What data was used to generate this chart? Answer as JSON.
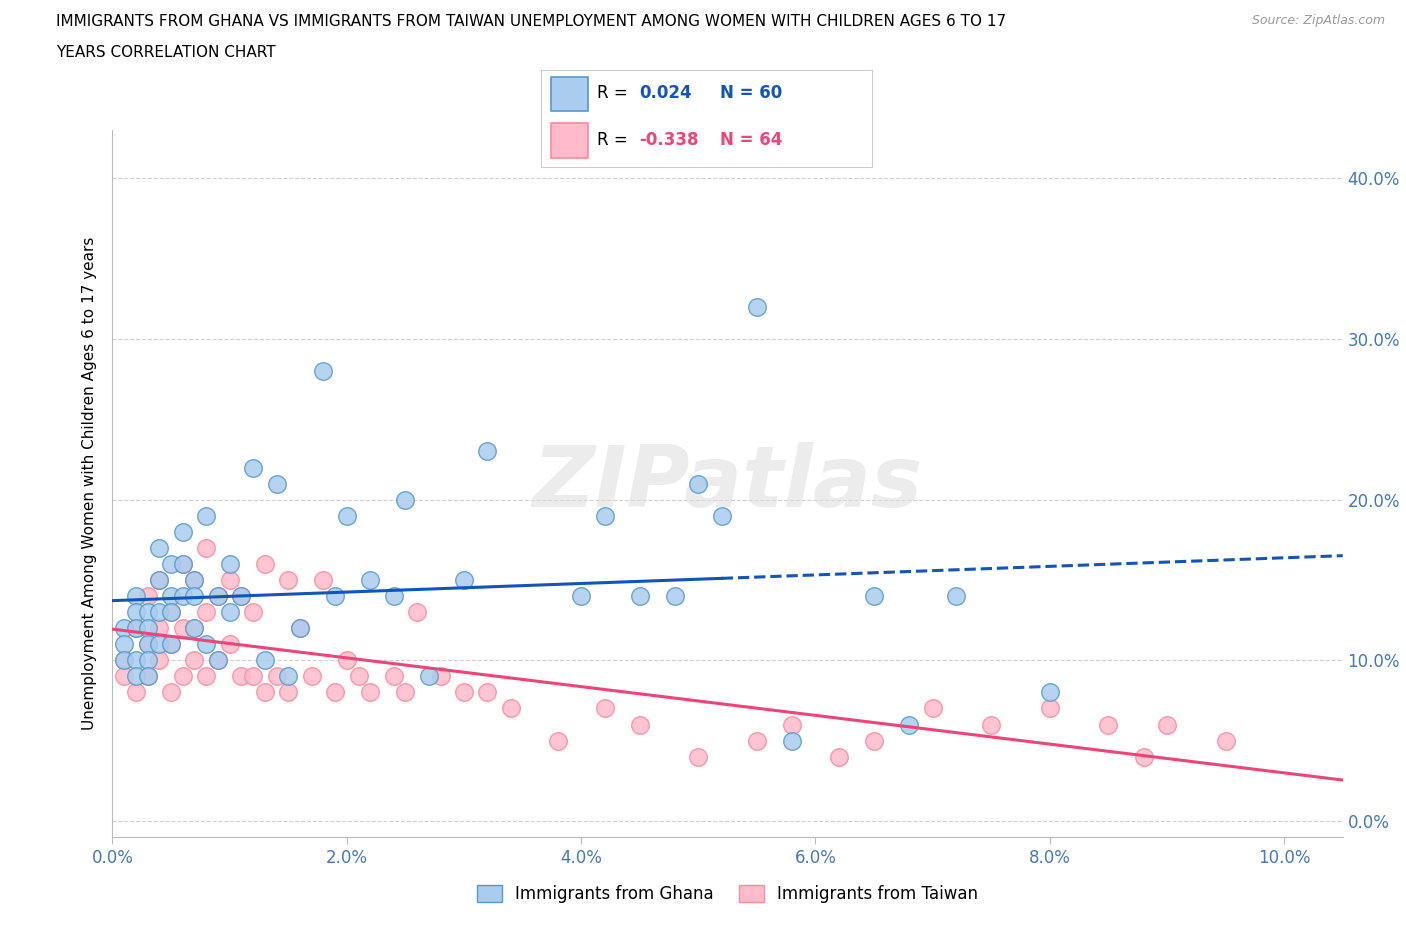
{
  "title_line1": "IMMIGRANTS FROM GHANA VS IMMIGRANTS FROM TAIWAN UNEMPLOYMENT AMONG WOMEN WITH CHILDREN AGES 6 TO 17",
  "title_line2": "YEARS CORRELATION CHART",
  "source": "Source: ZipAtlas.com",
  "ylabel": "Unemployment Among Women with Children Ages 6 to 17 years",
  "xlim": [
    0.0,
    0.105
  ],
  "ylim": [
    -0.01,
    0.43
  ],
  "ghana_R": 0.024,
  "ghana_N": 60,
  "taiwan_R": -0.338,
  "taiwan_N": 64,
  "ghana_color": "#AACCEE",
  "ghana_edge_color": "#5599CC",
  "taiwan_color": "#FFBBCC",
  "taiwan_edge_color": "#FF8899",
  "ghana_line_color": "#1155BB",
  "taiwan_line_color": "#EE4477",
  "x_ticks": [
    0.0,
    0.02,
    0.04,
    0.06,
    0.08,
    0.1
  ],
  "x_labels": [
    "0.0%",
    "2.0%",
    "4.0%",
    "6.0%",
    "8.0%",
    "10.0%"
  ],
  "y_ticks": [
    0.0,
    0.1,
    0.2,
    0.3,
    0.4
  ],
  "y_labels": [
    "0.0%",
    "10.0%",
    "20.0%",
    "30.0%",
    "40.0%"
  ],
  "ghana_x": [
    0.001,
    0.001,
    0.001,
    0.002,
    0.002,
    0.002,
    0.002,
    0.002,
    0.003,
    0.003,
    0.003,
    0.003,
    0.003,
    0.004,
    0.004,
    0.004,
    0.004,
    0.005,
    0.005,
    0.005,
    0.005,
    0.006,
    0.006,
    0.006,
    0.007,
    0.007,
    0.007,
    0.008,
    0.008,
    0.009,
    0.009,
    0.01,
    0.01,
    0.011,
    0.012,
    0.013,
    0.014,
    0.015,
    0.016,
    0.018,
    0.019,
    0.02,
    0.022,
    0.024,
    0.025,
    0.027,
    0.03,
    0.032,
    0.04,
    0.042,
    0.045,
    0.048,
    0.05,
    0.052,
    0.055,
    0.058,
    0.065,
    0.068,
    0.072,
    0.08
  ],
  "ghana_y": [
    0.12,
    0.11,
    0.1,
    0.14,
    0.13,
    0.12,
    0.1,
    0.09,
    0.13,
    0.12,
    0.11,
    0.1,
    0.09,
    0.17,
    0.15,
    0.13,
    0.11,
    0.16,
    0.14,
    0.13,
    0.11,
    0.18,
    0.16,
    0.14,
    0.15,
    0.14,
    0.12,
    0.19,
    0.11,
    0.14,
    0.1,
    0.16,
    0.13,
    0.14,
    0.22,
    0.1,
    0.21,
    0.09,
    0.12,
    0.28,
    0.14,
    0.19,
    0.15,
    0.14,
    0.2,
    0.09,
    0.15,
    0.23,
    0.14,
    0.19,
    0.14,
    0.14,
    0.21,
    0.19,
    0.32,
    0.05,
    0.14,
    0.06,
    0.14,
    0.08
  ],
  "taiwan_x": [
    0.001,
    0.001,
    0.002,
    0.002,
    0.003,
    0.003,
    0.003,
    0.004,
    0.004,
    0.004,
    0.005,
    0.005,
    0.005,
    0.006,
    0.006,
    0.006,
    0.007,
    0.007,
    0.007,
    0.008,
    0.008,
    0.008,
    0.009,
    0.009,
    0.01,
    0.01,
    0.011,
    0.011,
    0.012,
    0.012,
    0.013,
    0.013,
    0.014,
    0.015,
    0.015,
    0.016,
    0.017,
    0.018,
    0.019,
    0.02,
    0.021,
    0.022,
    0.024,
    0.025,
    0.026,
    0.028,
    0.03,
    0.032,
    0.034,
    0.038,
    0.042,
    0.045,
    0.05,
    0.055,
    0.058,
    0.062,
    0.065,
    0.07,
    0.075,
    0.08,
    0.085,
    0.088,
    0.09,
    0.095
  ],
  "taiwan_y": [
    0.1,
    0.09,
    0.12,
    0.08,
    0.14,
    0.11,
    0.09,
    0.15,
    0.12,
    0.1,
    0.13,
    0.11,
    0.08,
    0.16,
    0.12,
    0.09,
    0.15,
    0.12,
    0.1,
    0.17,
    0.13,
    0.09,
    0.14,
    0.1,
    0.15,
    0.11,
    0.14,
    0.09,
    0.13,
    0.09,
    0.16,
    0.08,
    0.09,
    0.15,
    0.08,
    0.12,
    0.09,
    0.15,
    0.08,
    0.1,
    0.09,
    0.08,
    0.09,
    0.08,
    0.13,
    0.09,
    0.08,
    0.08,
    0.07,
    0.05,
    0.07,
    0.06,
    0.04,
    0.05,
    0.06,
    0.04,
    0.05,
    0.07,
    0.06,
    0.07,
    0.06,
    0.04,
    0.06,
    0.05
  ]
}
